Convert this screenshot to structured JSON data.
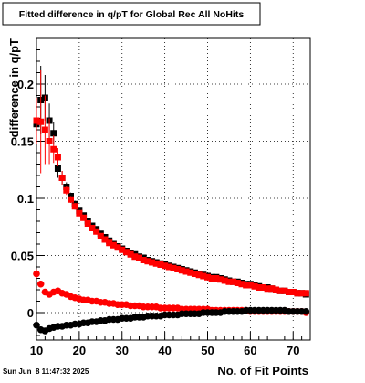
{
  "window": {
    "timestamp": "Sun Jun  8 11:47:32 2025"
  },
  "chart_data": {
    "type": "scatter",
    "title": "Fitted difference in q/pT for Global Rec All NoHits",
    "xlabel": "No. of Fit Points",
    "ylabel": "difference in q/pT",
    "xlim": [
      10,
      74
    ],
    "ylim": [
      -0.024,
      0.24
    ],
    "xticks": [
      10,
      20,
      30,
      40,
      50,
      60,
      70
    ],
    "yticks": [
      0,
      0.05,
      0.1,
      0.15,
      0.2
    ],
    "ytick_labels": [
      "0",
      "0.05",
      "0.1",
      "0.15",
      "0.2"
    ],
    "grid": true,
    "colors": {
      "series1": "#000000",
      "series2": "#ff0000",
      "series3": "#ff0000",
      "series4": "#000000"
    },
    "series": [
      {
        "marker": "square",
        "color": "#000000",
        "x": [
          10,
          11,
          12,
          13,
          14,
          15,
          16,
          17,
          18,
          19,
          20,
          21,
          22,
          23,
          24,
          25,
          26,
          27,
          28,
          29,
          30,
          31,
          32,
          33,
          34,
          35,
          36,
          37,
          38,
          39,
          40,
          41,
          42,
          43,
          44,
          45,
          46,
          47,
          48,
          49,
          50,
          51,
          52,
          53,
          54,
          55,
          56,
          57,
          58,
          59,
          60,
          61,
          62,
          63,
          64,
          65,
          66,
          67,
          68,
          69,
          70,
          71,
          72,
          73
        ],
        "y": [
          0.165,
          0.186,
          0.188,
          0.168,
          0.157,
          0.126,
          0.118,
          0.11,
          0.102,
          0.095,
          0.089,
          0.085,
          0.08,
          0.076,
          0.073,
          0.069,
          0.066,
          0.063,
          0.06,
          0.058,
          0.056,
          0.054,
          0.052,
          0.051,
          0.049,
          0.048,
          0.046,
          0.045,
          0.044,
          0.043,
          0.042,
          0.041,
          0.04,
          0.039,
          0.038,
          0.037,
          0.036,
          0.035,
          0.034,
          0.033,
          0.032,
          0.031,
          0.031,
          0.03,
          0.029,
          0.028,
          0.027,
          0.027,
          0.026,
          0.025,
          0.025,
          0.024,
          0.023,
          0.022,
          0.022,
          0.021,
          0.02,
          0.019,
          0.019,
          0.018,
          0.018,
          0.017,
          0.017,
          0.016
        ],
        "err": [
          0.02,
          0.03,
          0.02,
          0.015,
          0.01,
          0.008,
          0.006,
          0.004,
          0.003,
          0.003,
          0.002,
          0.002,
          0.002,
          0.002,
          0.002,
          0.001,
          0.001,
          0.001,
          0.001,
          0.001,
          0.001,
          0.001,
          0.001,
          0.001,
          0.001,
          0.001,
          0.001,
          0.001,
          0.001,
          0.001,
          0.001,
          0.001,
          0.001,
          0.001,
          0.001,
          0.001,
          0.001,
          0.001,
          0.001,
          0.001,
          0.001,
          0.001,
          0.001,
          0.001,
          0.001,
          0.001,
          0.001,
          0.001,
          0.001,
          0.001,
          0.001,
          0.001,
          0.001,
          0.001,
          0.001,
          0.001,
          0.001,
          0.001,
          0.001,
          0.001,
          0.001,
          0.001,
          0.001,
          0.001
        ]
      },
      {
        "marker": "square",
        "color": "#ff0000",
        "x": [
          10,
          11,
          12,
          13,
          14,
          15,
          16,
          17,
          18,
          19,
          20,
          21,
          22,
          23,
          24,
          25,
          26,
          27,
          28,
          29,
          30,
          31,
          32,
          33,
          34,
          35,
          36,
          37,
          38,
          39,
          40,
          41,
          42,
          43,
          44,
          45,
          46,
          47,
          48,
          49,
          50,
          51,
          52,
          53,
          54,
          55,
          56,
          57,
          58,
          59,
          60,
          61,
          62,
          63,
          64,
          65,
          66,
          67,
          68,
          69,
          70,
          71,
          72,
          73
        ],
        "y": [
          0.168,
          0.167,
          0.16,
          0.15,
          0.143,
          0.136,
          0.118,
          0.107,
          0.099,
          0.093,
          0.087,
          0.083,
          0.078,
          0.074,
          0.071,
          0.067,
          0.064,
          0.061,
          0.059,
          0.057,
          0.055,
          0.053,
          0.051,
          0.049,
          0.048,
          0.046,
          0.045,
          0.044,
          0.043,
          0.042,
          0.041,
          0.04,
          0.039,
          0.038,
          0.037,
          0.036,
          0.035,
          0.034,
          0.033,
          0.032,
          0.031,
          0.03,
          0.03,
          0.029,
          0.028,
          0.027,
          0.027,
          0.026,
          0.025,
          0.024,
          0.024,
          0.023,
          0.022,
          0.022,
          0.021,
          0.021,
          0.02,
          0.019,
          0.019,
          0.018,
          0.018,
          0.017,
          0.017,
          0.017
        ],
        "err": [
          0.02,
          0.045,
          0.03,
          0.02,
          0.012,
          0.008,
          0.006,
          0.004,
          0.003,
          0.003,
          0.002,
          0.002,
          0.002,
          0.002,
          0.002,
          0.001,
          0.001,
          0.001,
          0.001,
          0.001,
          0.001,
          0.001,
          0.001,
          0.001,
          0.001,
          0.001,
          0.001,
          0.001,
          0.001,
          0.001,
          0.001,
          0.001,
          0.001,
          0.001,
          0.001,
          0.001,
          0.001,
          0.001,
          0.001,
          0.001,
          0.001,
          0.001,
          0.001,
          0.001,
          0.001,
          0.001,
          0.001,
          0.001,
          0.001,
          0.001,
          0.001,
          0.001,
          0.001,
          0.001,
          0.001,
          0.001,
          0.001,
          0.001,
          0.001,
          0.001,
          0.001,
          0.001,
          0.001,
          0.001
        ]
      },
      {
        "marker": "circle",
        "color": "#ff0000",
        "x": [
          10,
          11,
          12,
          13,
          14,
          15,
          16,
          17,
          18,
          19,
          20,
          21,
          22,
          23,
          24,
          25,
          26,
          27,
          28,
          29,
          30,
          31,
          32,
          33,
          34,
          35,
          36,
          37,
          38,
          39,
          40,
          41,
          42,
          43,
          44,
          45,
          46,
          47,
          48,
          49,
          50,
          51,
          52,
          53,
          54,
          55,
          56,
          57,
          58,
          59,
          60,
          61,
          62,
          63,
          64,
          65,
          66,
          67,
          68,
          69,
          70,
          71,
          72,
          73
        ],
        "y": [
          0.034,
          0.025,
          0.018,
          0.016,
          0.018,
          0.019,
          0.017,
          0.016,
          0.014,
          0.013,
          0.012,
          0.011,
          0.011,
          0.01,
          0.01,
          0.009,
          0.009,
          0.008,
          0.008,
          0.007,
          0.007,
          0.007,
          0.006,
          0.006,
          0.006,
          0.005,
          0.005,
          0.005,
          0.005,
          0.004,
          0.004,
          0.004,
          0.004,
          0.004,
          0.003,
          0.003,
          0.003,
          0.003,
          0.003,
          0.003,
          0.003,
          0.002,
          0.002,
          0.002,
          0.002,
          0.002,
          0.002,
          0.002,
          0.002,
          0.002,
          0.001,
          0.001,
          0.001,
          0.001,
          0.001,
          0.001,
          0.001,
          0.001,
          0.001,
          0.001,
          0.001,
          0.001,
          0.001,
          0.0
        ],
        "err": [
          0.004,
          0.003,
          0.002,
          0.002,
          0.002,
          0.002,
          0.001,
          0.001,
          0.001,
          0.001,
          0.001,
          0.001,
          0.001,
          0.001,
          0.001,
          0.001,
          0.001,
          0.001,
          0.001,
          0.001,
          0.001,
          0.001,
          0.001,
          0.001,
          0.001,
          0.001,
          0.001,
          0.001,
          0.001,
          0.001,
          0.001,
          0.001,
          0.001,
          0.001,
          0.001,
          0.001,
          0.001,
          0.001,
          0.001,
          0.001,
          0.001,
          0.001,
          0.001,
          0.001,
          0.001,
          0.001,
          0.001,
          0.001,
          0.001,
          0.001,
          0.001,
          0.001,
          0.001,
          0.001,
          0.001,
          0.001,
          0.001,
          0.001,
          0.001,
          0.001,
          0.001,
          0.001,
          0.001,
          0.001
        ]
      },
      {
        "marker": "circle",
        "color": "#000000",
        "x": [
          10,
          11,
          12,
          13,
          14,
          15,
          16,
          17,
          18,
          19,
          20,
          21,
          22,
          23,
          24,
          25,
          26,
          27,
          28,
          29,
          30,
          31,
          32,
          33,
          34,
          35,
          36,
          37,
          38,
          39,
          40,
          41,
          42,
          43,
          44,
          45,
          46,
          47,
          48,
          49,
          50,
          51,
          52,
          53,
          54,
          55,
          56,
          57,
          58,
          59,
          60,
          61,
          62,
          63,
          64,
          65,
          66,
          67,
          68,
          69,
          70,
          71,
          72,
          73
        ],
        "y": [
          -0.011,
          -0.015,
          -0.016,
          -0.014,
          -0.013,
          -0.012,
          -0.012,
          -0.011,
          -0.011,
          -0.01,
          -0.01,
          -0.009,
          -0.009,
          -0.008,
          -0.008,
          -0.007,
          -0.007,
          -0.006,
          -0.006,
          -0.006,
          -0.005,
          -0.005,
          -0.005,
          -0.004,
          -0.004,
          -0.004,
          -0.003,
          -0.003,
          -0.003,
          -0.003,
          -0.002,
          -0.002,
          -0.002,
          -0.002,
          -0.001,
          -0.001,
          -0.001,
          -0.001,
          -0.001,
          0.0,
          0.0,
          0.0,
          0.0,
          0.0,
          0.001,
          0.001,
          0.001,
          0.001,
          0.001,
          0.002,
          0.002,
          0.002,
          0.002,
          0.002,
          0.002,
          0.002,
          0.002,
          0.002,
          0.002,
          0.001,
          0.001,
          0.001,
          0.001,
          0.001
        ],
        "err": [
          0.004,
          0.003,
          0.002,
          0.002,
          0.002,
          0.001,
          0.001,
          0.001,
          0.001,
          0.001,
          0.001,
          0.001,
          0.001,
          0.001,
          0.001,
          0.001,
          0.001,
          0.001,
          0.001,
          0.001,
          0.001,
          0.001,
          0.001,
          0.001,
          0.001,
          0.001,
          0.001,
          0.001,
          0.001,
          0.001,
          0.001,
          0.001,
          0.001,
          0.001,
          0.001,
          0.001,
          0.001,
          0.001,
          0.001,
          0.001,
          0.001,
          0.001,
          0.001,
          0.001,
          0.001,
          0.001,
          0.001,
          0.001,
          0.001,
          0.001,
          0.001,
          0.001,
          0.001,
          0.001,
          0.001,
          0.001,
          0.001,
          0.001,
          0.001,
          0.001,
          0.001,
          0.001,
          0.001,
          0.001
        ]
      }
    ]
  }
}
